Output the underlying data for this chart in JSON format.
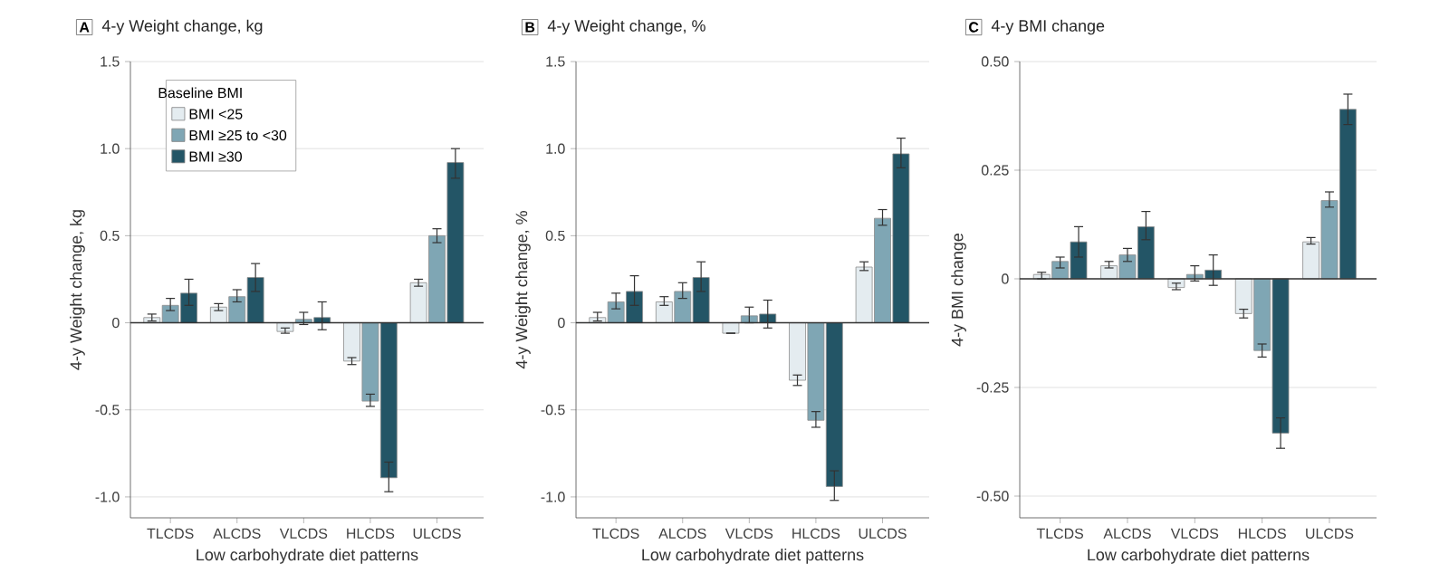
{
  "chart_data": [
    {
      "type": "bar",
      "title": "4-y Weight change, kg",
      "annotations": [
        "A"
      ],
      "xlabel": "Low carbohydrate diet patterns",
      "ylabel": "4-y Weight change, kg",
      "categories": [
        "TLCDS",
        "ALCDS",
        "VLCDS",
        "HLCDS",
        "ULCDS"
      ],
      "ylim": [
        -1.12,
        1.5
      ],
      "yticks": [
        {
          "value": -1.0,
          "label": "-1.0"
        },
        -0.5,
        0,
        0.5,
        {
          "value": 1.0,
          "label": "1.0"
        },
        1.5
      ],
      "grid": "y",
      "legend": "top left",
      "legend_title": "Baseline BMI",
      "ref_lines": [
        {
          "axis": "y",
          "value": 0,
          "color": "#333333"
        }
      ],
      "series": [
        {
          "name": "BMI <25",
          "color": "#e4ecf0",
          "values": [
            0.03,
            0.09,
            -0.05,
            -0.22,
            0.23
          ],
          "errors": [
            [
              0.01,
              0.05
            ],
            [
              0.07,
              0.11
            ],
            [
              -0.06,
              -0.03
            ],
            [
              -0.24,
              -0.2
            ],
            [
              0.21,
              0.25
            ]
          ]
        },
        {
          "name": "BMI ≥25 to <30",
          "color": "#7fa6b4",
          "values": [
            0.1,
            0.15,
            0.02,
            -0.45,
            0.5
          ],
          "errors": [
            [
              0.07,
              0.14
            ],
            [
              0.12,
              0.19
            ],
            [
              -0.01,
              0.06
            ],
            [
              -0.48,
              -0.41
            ],
            [
              0.46,
              0.54
            ]
          ]
        },
        {
          "name": "BMI ≥30",
          "color": "#235566",
          "values": [
            0.17,
            0.26,
            0.03,
            -0.89,
            0.92
          ],
          "errors": [
            [
              0.1,
              0.25
            ],
            [
              0.18,
              0.34
            ],
            [
              -0.04,
              0.12
            ],
            [
              -0.97,
              -0.8
            ],
            [
              0.83,
              1.0
            ]
          ]
        }
      ]
    },
    {
      "type": "bar",
      "title": "4-y Weight change, %",
      "annotations": [
        "B"
      ],
      "xlabel": "Low carbohydrate diet patterns",
      "ylabel": "4-y Weight change, %",
      "categories": [
        "TLCDS",
        "ALCDS",
        "VLCDS",
        "HLCDS",
        "ULCDS"
      ],
      "ylim": [
        -1.12,
        1.5
      ],
      "yticks": [
        {
          "value": -1.0,
          "label": "-1.0"
        },
        -0.5,
        0,
        0.5,
        {
          "value": 1.0,
          "label": "1.0"
        },
        1.5
      ],
      "grid": "y",
      "ref_lines": [
        {
          "axis": "y",
          "value": 0,
          "color": "#333333"
        }
      ],
      "series": [
        {
          "color": "#e4ecf0",
          "values": [
            0.03,
            0.12,
            -0.06,
            -0.33,
            0.32
          ],
          "errors": [
            [
              0.01,
              0.06
            ],
            [
              0.1,
              0.15
            ],
            null,
            [
              -0.36,
              -0.3
            ],
            [
              0.3,
              0.35
            ]
          ]
        },
        {
          "color": "#7fa6b4",
          "values": [
            0.12,
            0.18,
            0.04,
            -0.56,
            0.6
          ],
          "errors": [
            [
              0.08,
              0.17
            ],
            [
              0.14,
              0.23
            ],
            [
              0.0,
              0.09
            ],
            [
              -0.6,
              -0.51
            ],
            [
              0.56,
              0.65
            ]
          ]
        },
        {
          "color": "#235566",
          "values": [
            0.18,
            0.26,
            0.05,
            -0.94,
            0.97
          ],
          "errors": [
            [
              0.1,
              0.27
            ],
            [
              0.18,
              0.35
            ],
            [
              -0.03,
              0.13
            ],
            [
              -1.02,
              -0.85
            ],
            [
              0.89,
              1.06
            ]
          ]
        }
      ]
    },
    {
      "type": "bar",
      "title": "4-y BMI change",
      "annotations": [
        "C"
      ],
      "xlabel": "Low carbohydrate diet patterns",
      "ylabel": "4-y BMI change",
      "categories": [
        "TLCDS",
        "ALCDS",
        "VLCDS",
        "HLCDS",
        "ULCDS"
      ],
      "ylim": [
        -0.55,
        0.5
      ],
      "yticks": [
        {
          "value": -0.5,
          "label": "-0.50"
        },
        -0.25,
        0,
        0.25,
        {
          "value": 0.5,
          "label": "0.50"
        }
      ],
      "grid": "y",
      "ref_lines": [
        {
          "axis": "y",
          "value": 0,
          "color": "#333333"
        }
      ],
      "series": [
        {
          "color": "#e4ecf0",
          "values": [
            0.01,
            0.03,
            -0.02,
            -0.08,
            0.085
          ],
          "errors": [
            [
              0.0,
              0.015
            ],
            [
              0.025,
              0.04
            ],
            [
              -0.025,
              -0.01
            ],
            [
              -0.09,
              -0.07
            ],
            [
              0.08,
              0.095
            ]
          ]
        },
        {
          "color": "#7fa6b4",
          "values": [
            0.04,
            0.055,
            0.01,
            -0.165,
            0.18
          ],
          "errors": [
            [
              0.025,
              0.05
            ],
            [
              0.04,
              0.07
            ],
            [
              -0.005,
              0.03
            ],
            [
              -0.18,
              -0.15
            ],
            [
              0.165,
              0.2
            ]
          ]
        },
        {
          "color": "#235566",
          "values": [
            0.085,
            0.12,
            0.02,
            -0.355,
            0.39
          ],
          "errors": [
            [
              0.05,
              0.12
            ],
            [
              0.09,
              0.155
            ],
            [
              -0.015,
              0.055
            ],
            [
              -0.39,
              -0.32
            ],
            [
              0.355,
              0.425
            ]
          ]
        }
      ]
    }
  ]
}
